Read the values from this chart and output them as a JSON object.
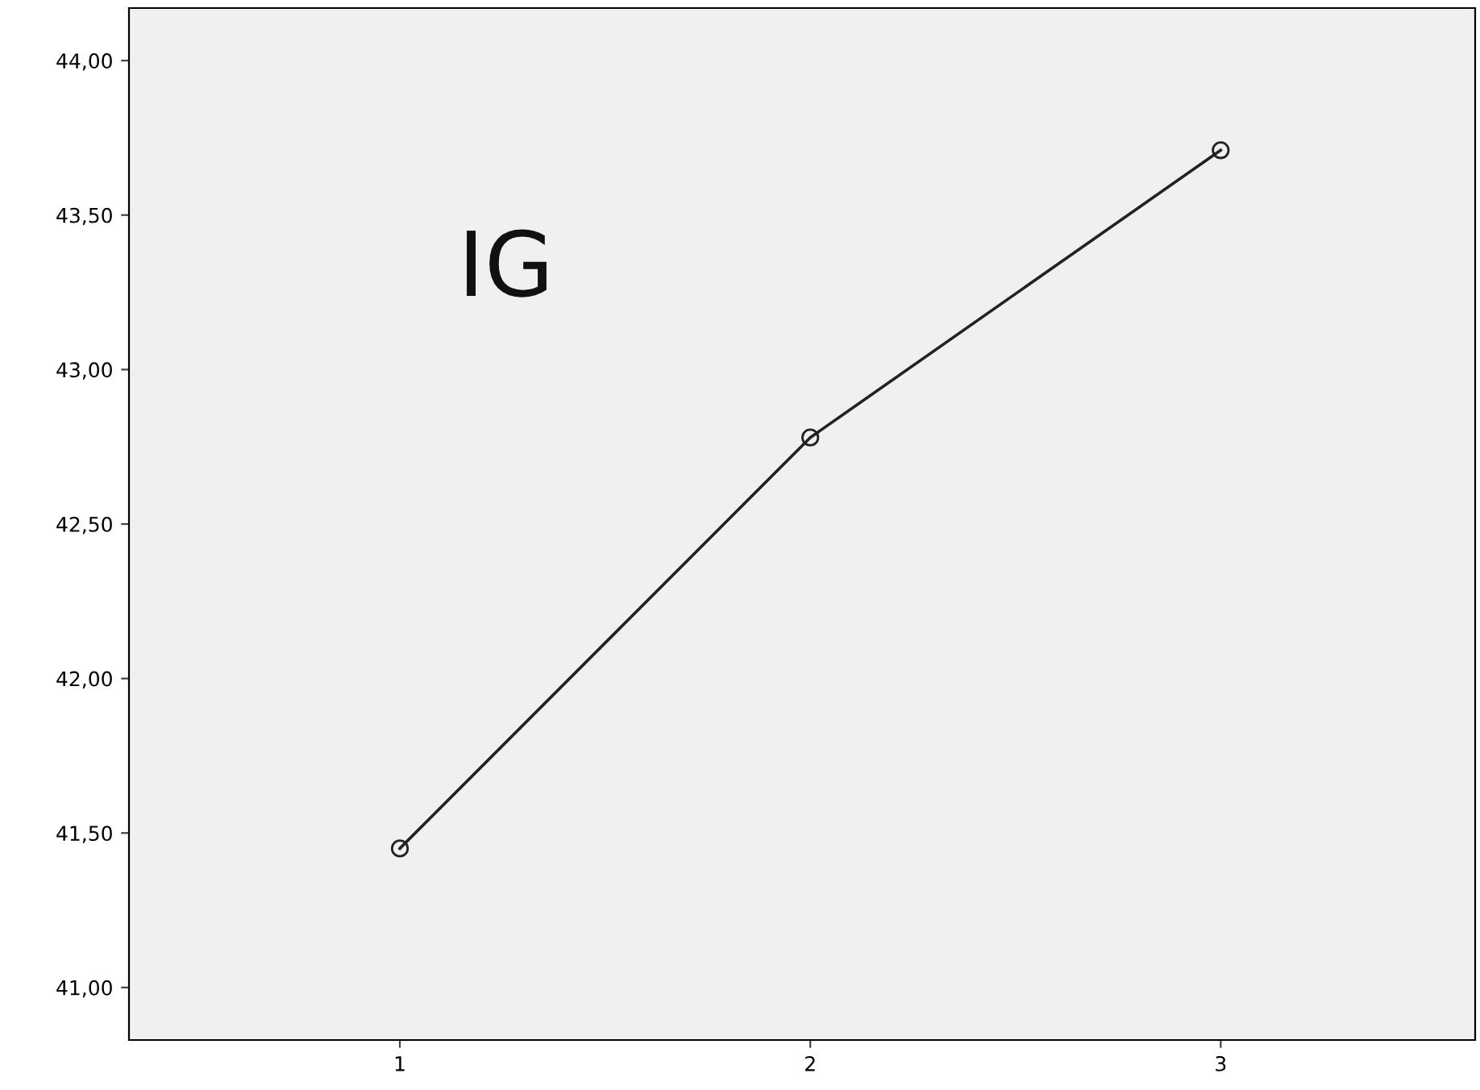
{
  "chart_data": {
    "type": "line",
    "categories": [
      "1",
      "2",
      "3"
    ],
    "series": [
      {
        "color": "#222222",
        "values": [
          41.45,
          42.78,
          43.71
        ]
      }
    ],
    "ylim": [
      40.83,
      44.17
    ],
    "yticks": [
      {
        "value": 41,
        "label": "41,00"
      },
      {
        "value": 41.5,
        "label": "41,50"
      },
      {
        "value": 42,
        "label": "42,00"
      },
      {
        "value": 42.5,
        "label": "42,50"
      },
      {
        "value": 43,
        "label": "43,00"
      },
      {
        "value": 43.5,
        "label": "43,50"
      },
      {
        "value": 44,
        "label": "44,00"
      }
    ],
    "annotations": [
      "IG"
    ],
    "marker": "circle",
    "line_style": "solid",
    "grid": false,
    "legend": false
  }
}
